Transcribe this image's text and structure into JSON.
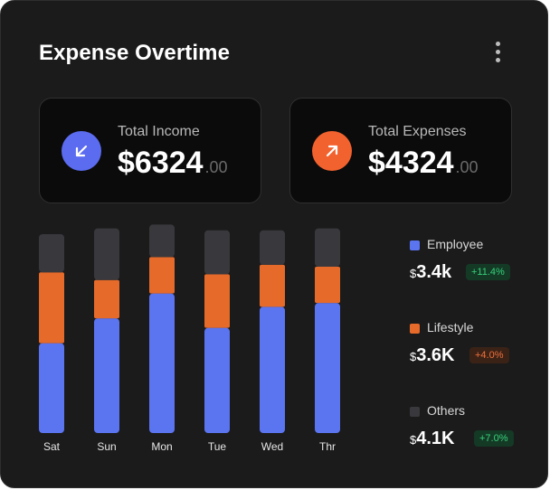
{
  "header": {
    "title": "Expense Overtime",
    "menu_icon": "more-vertical-icon"
  },
  "stats": [
    {
      "label": "Total Income",
      "value": "$6324",
      "cents": ".00",
      "icon": "arrow-down-left-icon",
      "icon_color": "#5b6cf0"
    },
    {
      "label": "Total Expenses",
      "value": "$4324",
      "cents": ".00",
      "icon": "arrow-up-right-icon",
      "icon_color": "#f2622e"
    }
  ],
  "chart_data": {
    "type": "bar",
    "stacked": true,
    "categories": [
      "Sat",
      "Sun",
      "Mon",
      "Tue",
      "Wed",
      "Thr"
    ],
    "series": [
      {
        "name": "Employee",
        "color": "#5b74f0",
        "values": [
          47,
          60,
          73,
          55,
          66,
          68
        ]
      },
      {
        "name": "Lifestyle",
        "color": "#e66a2a",
        "values": [
          37,
          20,
          19,
          28,
          22,
          19
        ]
      },
      {
        "name": "Others",
        "color": "#38383d",
        "values": [
          20,
          27,
          17,
          23,
          18,
          20
        ]
      }
    ],
    "ylim": [
      0,
      104
    ],
    "grid": false,
    "legend_position": "right"
  },
  "legend": [
    {
      "label": "Employee",
      "currency": "$",
      "amount": "3.4k",
      "change": "+11.4%",
      "color": "#5b74f0",
      "trend": "up"
    },
    {
      "label": "Lifestyle",
      "currency": "$",
      "amount": "3.6K",
      "change": "+4.0%",
      "color": "#e66a2a",
      "trend": "warn"
    },
    {
      "label": "Others",
      "currency": "$",
      "amount": "4.1K",
      "change": "+7.0%",
      "color": "#38383d",
      "trend": "up"
    }
  ]
}
